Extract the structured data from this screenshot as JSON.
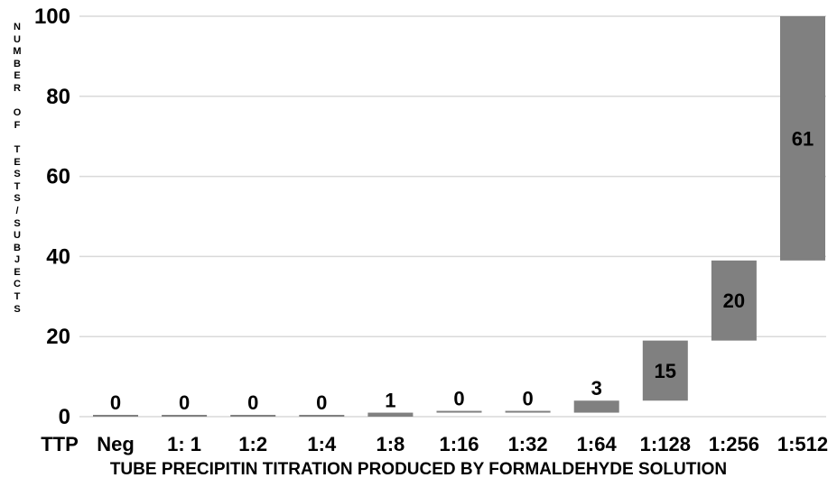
{
  "chart_data": {
    "type": "bar",
    "categories": [
      "Neg",
      "1: 1",
      "1:2",
      "1:4",
      "1:8",
      "1:16",
      "1:32",
      "1:64",
      "1:128",
      "1:256",
      "1:512"
    ],
    "values": [
      0,
      0,
      0,
      0,
      1,
      0,
      0,
      3,
      15,
      20,
      61
    ],
    "bar_bottoms": [
      0,
      0,
      0,
      0,
      0,
      1,
      1,
      1,
      4,
      19,
      39
    ],
    "bar_tops": [
      0,
      0,
      0,
      0,
      1,
      1,
      1,
      4,
      19,
      39,
      100
    ],
    "data_labels": [
      "0",
      "0",
      "0",
      "0",
      "1",
      "0",
      "0",
      "3",
      "15",
      "20",
      "61"
    ],
    "category_axis_title": "TTP",
    "xlabel": "TUBE PRECIPITIN TITRATION PRODUCED BY FORMALDEHYDE SOLUTION",
    "ylabel": "NUMBER OF TESTS/SUBJECTS",
    "ylim": [
      0,
      100
    ],
    "yticks": [
      0,
      20,
      40,
      60,
      80,
      100
    ],
    "grid": true,
    "colors": {
      "bar": "#808080",
      "grid": "#d9d9d9",
      "text": "#000000"
    }
  }
}
